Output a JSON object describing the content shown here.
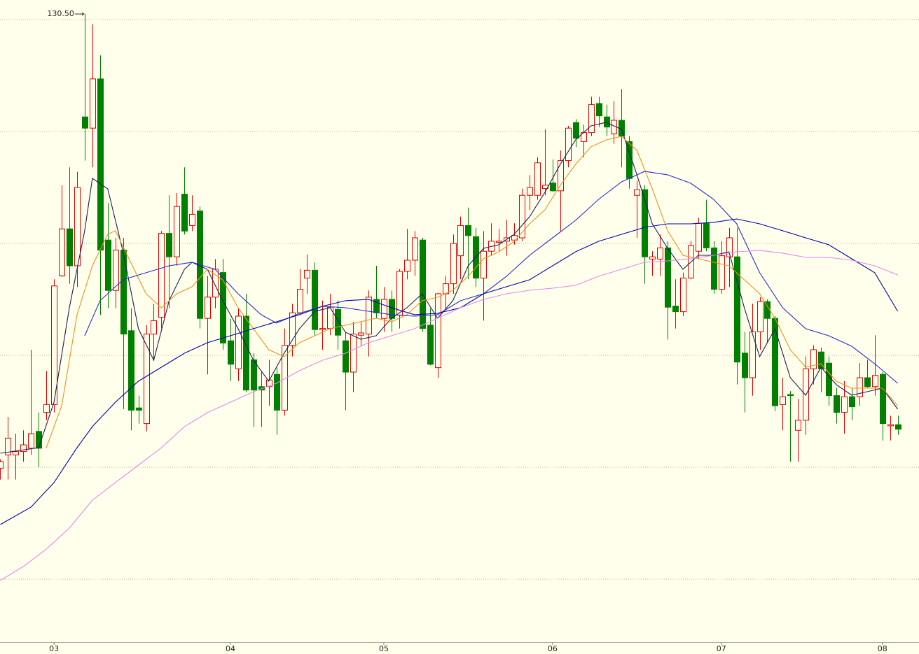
{
  "chart_data": {
    "type": "candlestick",
    "categories": [
      null,
      null,
      null,
      null,
      null,
      null,
      null,
      "03",
      null,
      null,
      null,
      null,
      null,
      null,
      null,
      null,
      null,
      null,
      null,
      null,
      null,
      null,
      null,
      null,
      null,
      null,
      null,
      null,
      null,
      null,
      "04",
      null,
      null,
      null,
      null,
      null,
      null,
      null,
      null,
      null,
      null,
      null,
      null,
      null,
      null,
      null,
      null,
      null,
      null,
      null,
      "05",
      null,
      null,
      null,
      null,
      null,
      null,
      null,
      null,
      null,
      null,
      null,
      null,
      null,
      null,
      null,
      null,
      null,
      null,
      null,
      null,
      null,
      "06",
      null,
      null,
      null,
      null,
      null,
      null,
      null,
      null,
      null,
      null,
      null,
      null,
      null,
      null,
      null,
      null,
      null,
      null,
      null,
      null,
      null,
      "07",
      null,
      null,
      null,
      null,
      null,
      null,
      null,
      null,
      null,
      null,
      null,
      null,
      null,
      null,
      null,
      null,
      null,
      null,
      null,
      null,
      "08",
      null,
      null
    ],
    "open": [
      89.9,
      91.1,
      91.1,
      91.4,
      91.7,
      93.2,
      94.9,
      95.6,
      107.1,
      111.3,
      108,
      121.3,
      120.3,
      124.7,
      110.3,
      105.8,
      109.4,
      102.2,
      95.3,
      93.9,
      101.9,
      103.4,
      110.9,
      108.8,
      114.4,
      111.6,
      112.9,
      103.3,
      105.2,
      107.4,
      101.3,
      98.8,
      103.5,
      99.6,
      97.2,
      97.2,
      98.3,
      95.1,
      100.9,
      103.8,
      106.9,
      107.6,
      102.3,
      102.4,
      104.1,
      101.3,
      98.5,
      101.8,
      101.9,
      105,
      103.3,
      105,
      103.6,
      107.5,
      108.5,
      110.3,
      102.7,
      98.9,
      105.5,
      106.4,
      108.9,
      111.6,
      110.6,
      106.9,
      109.3,
      110.1,
      110.2,
      110.3,
      110.5,
      114.3,
      114.3,
      114.9,
      115.4,
      114.7,
      117.4,
      120.8,
      119.1,
      119.9,
      122.5,
      121.3,
      119.8,
      121,
      119.1,
      114.3,
      114.8,
      108.6,
      108.6,
      109.6,
      104.4,
      103.9,
      106.9,
      109.3,
      111.8,
      109.6,
      105.9,
      108.8,
      108.8,
      100.2,
      98,
      102.1,
      104.8,
      103.3,
      95.6,
      96.5,
      93.3,
      94.2,
      98.8,
      100.3,
      99.3,
      96.4,
      94.9,
      96.3,
      96.3,
      98,
      97.2,
      98.3,
      93.7,
      93.8
    ],
    "high": [
      90.7,
      94.5,
      93,
      93.3,
      100.5,
      94.9,
      98.6,
      106.8,
      115.2,
      116.8,
      116.4,
      130.5,
      129.6,
      126.8,
      113.6,
      110.5,
      110.5,
      104.2,
      96.4,
      102.7,
      104.6,
      111.1,
      114.3,
      114.5,
      116.8,
      114.3,
      113.3,
      107.1,
      108.6,
      108.6,
      103.3,
      104.2,
      105.5,
      100.2,
      98.6,
      99.6,
      98.9,
      102.4,
      104.6,
      107.7,
      109,
      108.3,
      104.9,
      105.5,
      104.9,
      102.1,
      103,
      103,
      105.8,
      108,
      106.1,
      105.8,
      107.7,
      111.3,
      111.1,
      110.5,
      104.2,
      105.6,
      107.1,
      110.8,
      112.4,
      113.2,
      111.4,
      111.1,
      111.8,
      111.3,
      112.1,
      111.8,
      114.9,
      116.1,
      117.7,
      120.2,
      117.5,
      118.3,
      120.5,
      121.1,
      120.6,
      123.1,
      123.1,
      122.4,
      122.7,
      123.8,
      119.6,
      115.6,
      115.2,
      109.3,
      110.8,
      110.2,
      106.8,
      107.4,
      110.2,
      112.3,
      113.9,
      110.2,
      110.2,
      111.4,
      111.4,
      102.1,
      104.6,
      105.2,
      105,
      103.5,
      98,
      96.8,
      96.1,
      99.9,
      100.9,
      100.7,
      99.9,
      97.1,
      97.7,
      97.1,
      99.3,
      99.6,
      101.8,
      98.5,
      94.6,
      94.6
    ],
    "low": [
      88.9,
      88.9,
      88.9,
      90.5,
      91.1,
      90,
      94.2,
      94.9,
      107,
      106.4,
      106.1,
      117.4,
      116.8,
      103.6,
      104.2,
      104.2,
      95.2,
      93.3,
      93.9,
      93.2,
      99.6,
      102.4,
      104.2,
      108,
      110.8,
      111.1,
      102.4,
      98.3,
      104.2,
      100.5,
      97.7,
      97.7,
      96.7,
      93.6,
      93.6,
      95.5,
      92.9,
      94.6,
      99.9,
      103.6,
      105.5,
      101.8,
      100.5,
      101.8,
      100.5,
      95.1,
      96.7,
      100.8,
      99.9,
      103.3,
      102.1,
      102.1,
      102.4,
      106.8,
      107.1,
      102.1,
      99.1,
      98,
      104.2,
      105.5,
      106.8,
      106.8,
      106.1,
      103.1,
      108.9,
      109.3,
      108.9,
      109.9,
      110.2,
      113,
      113.9,
      114.3,
      114.6,
      111.1,
      116.8,
      118.6,
      117.7,
      119.6,
      120.4,
      119.6,
      118.9,
      116.8,
      114.9,
      110.5,
      106.4,
      107.1,
      107.1,
      101.4,
      102.4,
      103.5,
      106.8,
      108.6,
      109.3,
      105.5,
      105.5,
      106.1,
      97.4,
      94.9,
      96.4,
      100.5,
      101.1,
      95,
      93.3,
      90.5,
      90.5,
      92.9,
      97.4,
      96.7,
      95.5,
      93.9,
      93,
      94.2,
      95.5,
      97.1,
      96.4,
      92.4,
      92.4,
      92.9
    ],
    "close": [
      90.5,
      92.6,
      91.4,
      92,
      93,
      91.7,
      95.6,
      106.2,
      111.3,
      108,
      115,
      120.3,
      124.7,
      109.4,
      105.8,
      109.4,
      101.9,
      95.1,
      95.1,
      101.9,
      103.1,
      110.9,
      108.8,
      113.3,
      111.1,
      112.6,
      103.3,
      105.2,
      107.7,
      101.1,
      99.2,
      103.5,
      96.9,
      96.9,
      96.9,
      97.8,
      95.1,
      100.9,
      103.8,
      105.9,
      107.6,
      102.3,
      102.4,
      104.3,
      101.8,
      98.5,
      101.9,
      102,
      105.2,
      103.8,
      105,
      103.3,
      107.5,
      108.5,
      110.5,
      102.4,
      99.2,
      105.5,
      106.4,
      110,
      111.6,
      110.7,
      106.9,
      109.3,
      110.2,
      110.2,
      110.5,
      110.7,
      114.3,
      115,
      117.2,
      115.2,
      114.7,
      117.4,
      120.3,
      119.4,
      119.9,
      122.4,
      121.4,
      120.4,
      121,
      119.6,
      115.8,
      114.8,
      108.8,
      108.8,
      109.6,
      104.3,
      103.9,
      106.9,
      109.8,
      111.8,
      109.6,
      105.9,
      108.9,
      110.5,
      99.4,
      98,
      102.1,
      104.8,
      103.3,
      95.5,
      96.3,
      96.4,
      94.2,
      98.8,
      100.5,
      98.8,
      96.4,
      94.9,
      96.3,
      95.4,
      98,
      97.2,
      98.2,
      93.9,
      93.8,
      93.4
    ],
    "up_color": "#e00000",
    "down_color": "#008000",
    "lines": [
      {
        "color": "#1c1c5c",
        "x": [
          0,
          5,
          7,
          9,
          11,
          12,
          14,
          16,
          18,
          20,
          22,
          24,
          25,
          27,
          29,
          31,
          33,
          35,
          37,
          39,
          41,
          43,
          45,
          47,
          49,
          51,
          53,
          55,
          57,
          59,
          61,
          63,
          65,
          67,
          69,
          71,
          73,
          75,
          77,
          79,
          81,
          83,
          85,
          87,
          89,
          91,
          93,
          95,
          97,
          99,
          101,
          103,
          105,
          107,
          109,
          111,
          113,
          115,
          117
        ],
        "values": [
          91.25,
          91.75,
          95.81,
          104.25,
          111.13,
          115.81,
          114.88,
          109.25,
          102.38,
          99.56,
          104.88,
          107.69,
          108.31,
          107.69,
          104.88,
          102.38,
          99.56,
          97.69,
          100.19,
          102.38,
          103.94,
          104.25,
          102.06,
          101.44,
          101.75,
          103.31,
          104.25,
          105.5,
          103.31,
          104.88,
          108,
          109.56,
          109.88,
          110.81,
          112.38,
          114.56,
          117.06,
          119.25,
          120.5,
          120.81,
          120.19,
          116.13,
          111.75,
          109.56,
          107.69,
          108.94,
          108.94,
          109.25,
          104.25,
          99.88,
          102.38,
          98,
          96.44,
          98.94,
          97.38,
          96.44,
          96.75,
          97.06,
          95.19
        ]
      },
      {
        "color": "#f0901c",
        "x": [
          6,
          8,
          10,
          12,
          14,
          15,
          17,
          19,
          21,
          23,
          25,
          27,
          29,
          31,
          33,
          35,
          37,
          39,
          41,
          43,
          45,
          47,
          49,
          51,
          53,
          55,
          57,
          59,
          61,
          63,
          65,
          67,
          69,
          71,
          73,
          75,
          77,
          79,
          81,
          83,
          85,
          87,
          89,
          91,
          93,
          95,
          97,
          99,
          101,
          103,
          105,
          107,
          109,
          111,
          113,
          115,
          117
        ],
        "values": [
          91.75,
          95.5,
          103.63,
          108,
          110.81,
          111.13,
          108.31,
          105.5,
          104.25,
          105.5,
          106.13,
          107.69,
          106.75,
          104.25,
          102.38,
          100.5,
          99.88,
          101.13,
          101.75,
          102.38,
          102.69,
          103,
          103.31,
          103,
          103.63,
          104.88,
          105.19,
          105.81,
          107.06,
          108.63,
          109.25,
          110.19,
          111.75,
          113,
          115.19,
          117.06,
          118.63,
          119.25,
          119.56,
          118.31,
          114.88,
          111.13,
          108.94,
          108.63,
          108.31,
          108,
          106.75,
          105.5,
          103.31,
          100.5,
          98.94,
          99.25,
          97.69,
          97.06,
          97.06,
          97.06,
          95.5
        ]
      },
      {
        "color": "#2a2ad0",
        "x": [
          11,
          13,
          16,
          19,
          22,
          25,
          28,
          31,
          34,
          36,
          39,
          42,
          45,
          48,
          51,
          54,
          57,
          60,
          63,
          66,
          69,
          72,
          75,
          78,
          81,
          84,
          87,
          90,
          93,
          96,
          99,
          102,
          105,
          108,
          111,
          114,
          117
        ],
        "values": [
          101.75,
          104.88,
          106.75,
          107.38,
          108,
          108.31,
          107.69,
          105.5,
          103.63,
          102.88,
          103.75,
          104.38,
          104.25,
          103.94,
          103.63,
          103.5,
          103.63,
          104.88,
          105.5,
          107.06,
          108.94,
          110.5,
          112.06,
          113.94,
          115.5,
          116.44,
          116.13,
          115.38,
          113.94,
          111.75,
          107.38,
          104.25,
          102.38,
          101.75,
          100.81,
          99.25,
          97.5
        ]
      },
      {
        "color": "#0000a8",
        "x": [
          0,
          4,
          7,
          10,
          12,
          15,
          18,
          21,
          24,
          27,
          30,
          33,
          36,
          39,
          42,
          45,
          48,
          51,
          54,
          57,
          60,
          63,
          66,
          69,
          72,
          75,
          78,
          81,
          84,
          87,
          90,
          93,
          96,
          99,
          102,
          105,
          108,
          111,
          114,
          117
        ],
        "values": [
          84.88,
          86.44,
          88.63,
          91.75,
          93.63,
          95.81,
          97.69,
          98.94,
          100.19,
          101.13,
          101.75,
          102.38,
          103,
          103.63,
          104.38,
          104.88,
          105,
          104.25,
          103.63,
          103.75,
          104.25,
          105.5,
          106.13,
          106.75,
          108,
          109.25,
          110.19,
          110.81,
          111.44,
          111.75,
          111.75,
          111.88,
          112.19,
          111.75,
          111.13,
          110.5,
          109.88,
          108.63,
          107.38,
          103.94
        ]
      },
      {
        "color": "#e288f0",
        "x": [
          0,
          3,
          6,
          9,
          12,
          15,
          18,
          21,
          24,
          27,
          30,
          33,
          36,
          39,
          42,
          45,
          48,
          51,
          54,
          57,
          60,
          63,
          66,
          69,
          72,
          75,
          78,
          81,
          84,
          87,
          90,
          93,
          96,
          99,
          102,
          105,
          108,
          111,
          114,
          117
        ],
        "values": [
          79.88,
          81.13,
          82.69,
          84.56,
          87.06,
          88.63,
          90.19,
          91.75,
          93.63,
          94.88,
          95.81,
          96.75,
          97.5,
          98.63,
          99.56,
          100.19,
          101.13,
          101.75,
          102.38,
          103.31,
          104.25,
          105,
          105.5,
          105.81,
          106,
          106.25,
          107.06,
          107.69,
          108.31,
          108.44,
          108.63,
          108.94,
          109.25,
          109.38,
          109.13,
          108.75,
          108.75,
          108.5,
          108,
          107.19
        ]
      }
    ],
    "ylim": [
      74.375,
      131.75
    ],
    "yticks": [
      80,
      90,
      100,
      110,
      120,
      130
    ],
    "grid": true,
    "annotation": {
      "text": "130.50",
      "x": 11,
      "y": 130.5
    }
  }
}
